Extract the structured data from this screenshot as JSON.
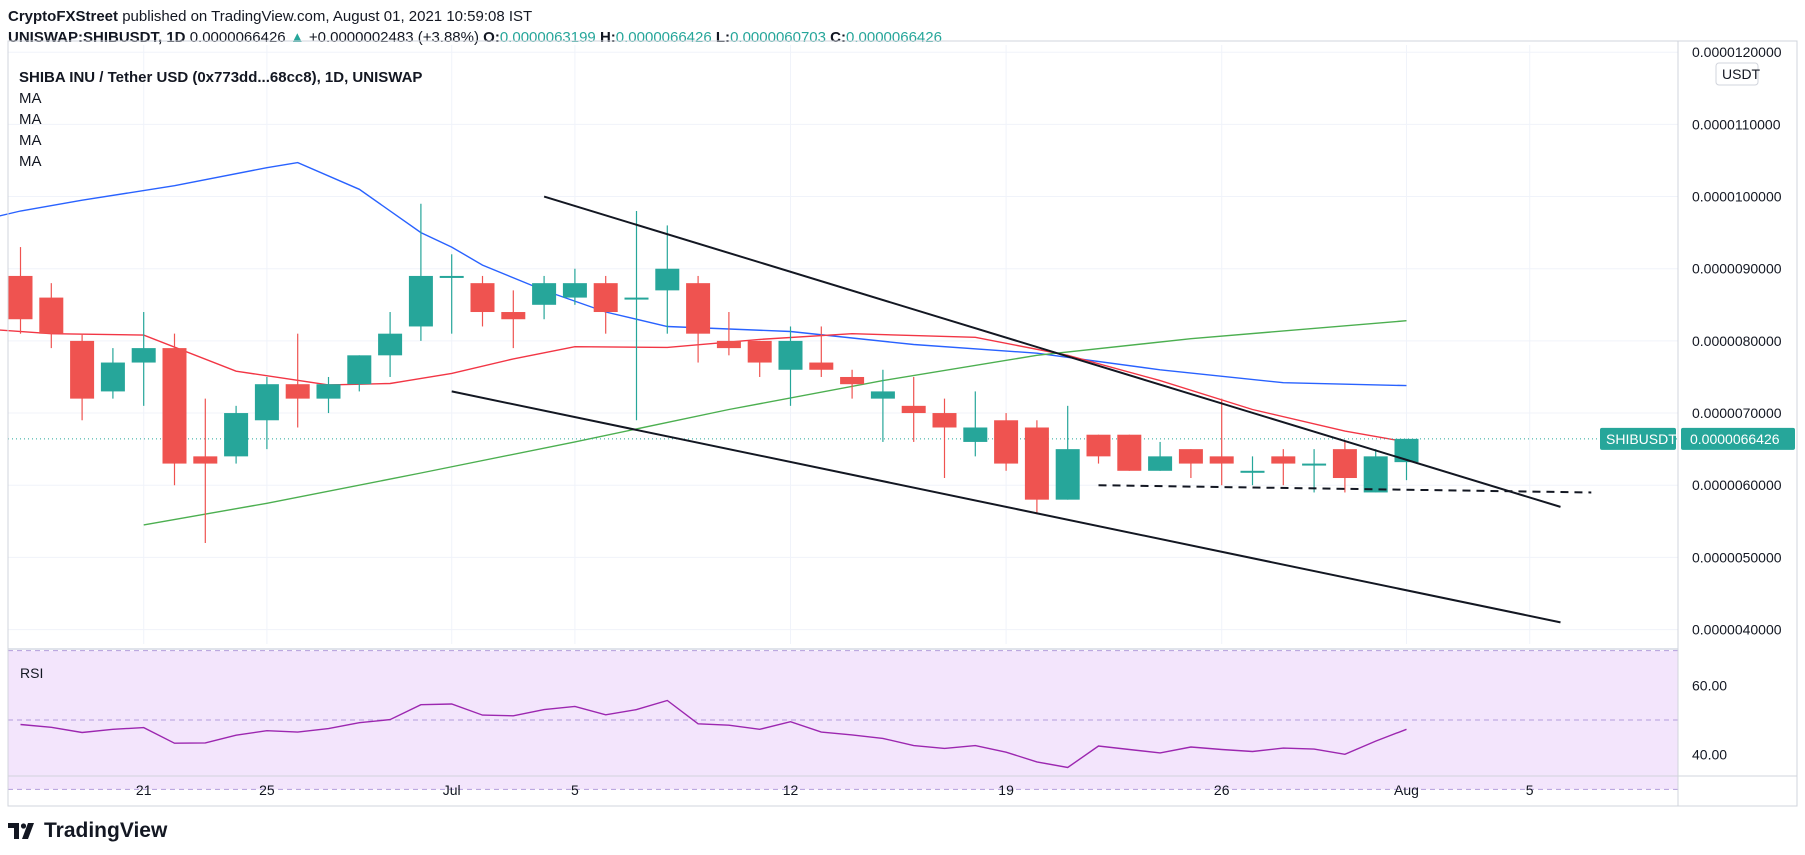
{
  "header": {
    "author": "CryptoFXStreet",
    "published_text": "published on TradingView.com, August 01, 2021 10:59:08 IST",
    "symbol": "UNISWAP:SHIBUSDT, 1D",
    "last": "0.0000066426",
    "change_arrow": "▲",
    "change": "+0.0000002483 (+3.88%)",
    "o_label": "O:",
    "o_value": "0.0000063199",
    "h_label": "H:",
    "h_value": "0.0000066426",
    "l_label": "L:",
    "l_value": "0.0000060703",
    "c_label": "C:",
    "c_value": "0.0000066426"
  },
  "legend": {
    "title": "SHIBA INU / Tether USD (0x773dd...68cc8), 1D, UNISWAP",
    "ma_labels": [
      "MA",
      "MA",
      "MA",
      "MA"
    ]
  },
  "price_axis": {
    "currency": "USDT",
    "ticks": [
      "0.0000120000",
      "0.0000110000",
      "0.0000100000",
      "0.0000090000",
      "0.0000080000",
      "0.0000070000",
      "0.0000060000",
      "0.0000050000",
      "0.0000040000"
    ],
    "last_label": "SHIBUSDT",
    "last_value": "0.0000066426"
  },
  "rsi": {
    "label": "RSI",
    "ticks": [
      "60.00",
      "40.00"
    ]
  },
  "time_axis": {
    "ticks": [
      "21",
      "25",
      "Jul",
      "5",
      "12",
      "19",
      "26",
      "Aug",
      "5"
    ]
  },
  "footer": {
    "brand": "TradingView"
  },
  "colors": {
    "up": "#26a69a",
    "down": "#ef5350",
    "ma_blue": "#2962ff",
    "ma_red": "#f23645",
    "ma_green": "#4caf50",
    "rsi_line": "#9c27b0",
    "rsi_band": "#f3e5fc"
  },
  "chart_data": {
    "type": "candlestick",
    "symbol": "SHIBUSDT",
    "timeframe": "1D",
    "y_unit": "USDT",
    "ylim": [
      3.8e-06,
      1.21e-05
    ],
    "dates": [
      "2021-06-17",
      "2021-06-18",
      "2021-06-19",
      "2021-06-20",
      "2021-06-21",
      "2021-06-22",
      "2021-06-23",
      "2021-06-24",
      "2021-06-25",
      "2021-06-26",
      "2021-06-27",
      "2021-06-28",
      "2021-06-29",
      "2021-06-30",
      "2021-07-01",
      "2021-07-02",
      "2021-07-03",
      "2021-07-04",
      "2021-07-05",
      "2021-07-06",
      "2021-07-07",
      "2021-07-08",
      "2021-07-09",
      "2021-07-10",
      "2021-07-11",
      "2021-07-12",
      "2021-07-13",
      "2021-07-14",
      "2021-07-15",
      "2021-07-16",
      "2021-07-17",
      "2021-07-18",
      "2021-07-19",
      "2021-07-20",
      "2021-07-21",
      "2021-07-22",
      "2021-07-23",
      "2021-07-24",
      "2021-07-25",
      "2021-07-26",
      "2021-07-27",
      "2021-07-28",
      "2021-07-29",
      "2021-07-30",
      "2021-07-31",
      "2021-08-01"
    ],
    "ohlc": [
      [
        8.9e-06,
        9.3e-06,
        8.1e-06,
        8.3e-06
      ],
      [
        8.6e-06,
        8.8e-06,
        7.9e-06,
        8.1e-06
      ],
      [
        8e-06,
        8.1e-06,
        6.9e-06,
        7.2e-06
      ],
      [
        7.3e-06,
        7.9e-06,
        7.2e-06,
        7.7e-06
      ],
      [
        7.7e-06,
        8.4e-06,
        7.1e-06,
        7.9e-06
      ],
      [
        7.9e-06,
        8.1e-06,
        6e-06,
        6.3e-06
      ],
      [
        6.4e-06,
        7.2e-06,
        5.2e-06,
        6.3e-06
      ],
      [
        6.4e-06,
        7.1e-06,
        6.3e-06,
        7e-06
      ],
      [
        6.9e-06,
        7.5e-06,
        6.5e-06,
        7.4e-06
      ],
      [
        7.4e-06,
        8.1e-06,
        6.8e-06,
        7.2e-06
      ],
      [
        7.2e-06,
        7.5e-06,
        7e-06,
        7.4e-06
      ],
      [
        7.4e-06,
        7.8e-06,
        7.3e-06,
        7.8e-06
      ],
      [
        7.8e-06,
        8.4e-06,
        7.5e-06,
        8.1e-06
      ],
      [
        8.2e-06,
        9.9e-06,
        8e-06,
        8.9e-06
      ],
      [
        8.9e-06,
        9.2e-06,
        8.1e-06,
        8.9e-06
      ],
      [
        8.8e-06,
        8.9e-06,
        8.2e-06,
        8.4e-06
      ],
      [
        8.4e-06,
        8.7e-06,
        7.9e-06,
        8.3e-06
      ],
      [
        8.5e-06,
        8.9e-06,
        8.3e-06,
        8.8e-06
      ],
      [
        8.6e-06,
        9e-06,
        8.5e-06,
        8.8e-06
      ],
      [
        8.8e-06,
        8.9e-06,
        8.1e-06,
        8.4e-06
      ],
      [
        8.6e-06,
        9.8e-06,
        6.9e-06,
        8.6e-06
      ],
      [
        8.7e-06,
        9.6e-06,
        8.1e-06,
        9e-06
      ],
      [
        8.8e-06,
        8.9e-06,
        7.7e-06,
        8.1e-06
      ],
      [
        8e-06,
        8.4e-06,
        7.8e-06,
        7.9e-06
      ],
      [
        8e-06,
        8e-06,
        7.5e-06,
        7.7e-06
      ],
      [
        7.6e-06,
        8.2e-06,
        7.1e-06,
        8e-06
      ],
      [
        7.7e-06,
        8.2e-06,
        7.5e-06,
        7.6e-06
      ],
      [
        7.5e-06,
        7.6e-06,
        7.2e-06,
        7.4e-06
      ],
      [
        7.2e-06,
        7.6e-06,
        6.6e-06,
        7.3e-06
      ],
      [
        7.1e-06,
        7.5e-06,
        6.6e-06,
        7e-06
      ],
      [
        7e-06,
        7.2e-06,
        6.1e-06,
        6.8e-06
      ],
      [
        6.6e-06,
        7.3e-06,
        6.4e-06,
        6.8e-06
      ],
      [
        6.9e-06,
        7e-06,
        6.2e-06,
        6.3e-06
      ],
      [
        6.8e-06,
        6.9e-06,
        5.6e-06,
        5.8e-06
      ],
      [
        5.8e-06,
        7.1e-06,
        5.8e-06,
        6.5e-06
      ],
      [
        6.7e-06,
        6.7e-06,
        6.3e-06,
        6.4e-06
      ],
      [
        6.7e-06,
        6.7e-06,
        6.2e-06,
        6.2e-06
      ],
      [
        6.2e-06,
        6.6e-06,
        6.2e-06,
        6.4e-06
      ],
      [
        6.5e-06,
        6.5e-06,
        6.1e-06,
        6.3e-06
      ],
      [
        6.4e-06,
        7.2e-06,
        6e-06,
        6.3e-06
      ],
      [
        6.2e-06,
        6.4e-06,
        6e-06,
        6.2e-06
      ],
      [
        6.4e-06,
        6.5e-06,
        6e-06,
        6.3e-06
      ],
      [
        6.3e-06,
        6.5e-06,
        5.9e-06,
        6.3e-06
      ],
      [
        6.5e-06,
        6.6e-06,
        5.9e-06,
        6.1e-06
      ],
      [
        5.9e-06,
        6.5e-06,
        5.9e-06,
        6.4e-06
      ],
      [
        6.3199e-06,
        6.6426e-06,
        6.0703e-06,
        6.6426e-06
      ]
    ],
    "moving_averages": [
      {
        "color": "blue",
        "points": [
          [
            "2021-06-16",
            9.7e-06
          ],
          [
            "2021-06-17",
            9.8e-06
          ],
          [
            "2021-06-19",
            9.95e-06
          ],
          [
            "2021-06-22",
            1.015e-05
          ],
          [
            "2021-06-25",
            1.04e-05
          ],
          [
            "2021-06-26",
            1.047e-05
          ],
          [
            "2021-06-28",
            1.01e-05
          ],
          [
            "2021-06-30",
            9.5e-06
          ],
          [
            "2021-07-01",
            9.3e-06
          ],
          [
            "2021-07-02",
            9.05e-06
          ],
          [
            "2021-07-04",
            8.7e-06
          ],
          [
            "2021-07-06",
            8.4e-06
          ],
          [
            "2021-07-08",
            8.2e-06
          ],
          [
            "2021-07-12",
            8.13e-06
          ],
          [
            "2021-07-16",
            7.95e-06
          ],
          [
            "2021-07-20",
            7.83e-06
          ],
          [
            "2021-07-24",
            7.6e-06
          ],
          [
            "2021-07-28",
            7.42e-06
          ],
          [
            "2021-08-01",
            7.38e-06
          ]
        ]
      },
      {
        "color": "red",
        "points": [
          [
            "2021-06-16",
            8.16e-06
          ],
          [
            "2021-06-18",
            8.1e-06
          ],
          [
            "2021-06-21",
            8.08e-06
          ],
          [
            "2021-06-24",
            7.58e-06
          ],
          [
            "2021-06-27",
            7.39e-06
          ],
          [
            "2021-06-29",
            7.41e-06
          ],
          [
            "2021-07-01",
            7.55e-06
          ],
          [
            "2021-07-03",
            7.75e-06
          ],
          [
            "2021-07-05",
            7.92e-06
          ],
          [
            "2021-07-08",
            7.91e-06
          ],
          [
            "2021-07-11",
            8.02e-06
          ],
          [
            "2021-07-14",
            8.1e-06
          ],
          [
            "2021-07-18",
            8.05e-06
          ],
          [
            "2021-07-21",
            7.8e-06
          ],
          [
            "2021-07-24",
            7.45e-06
          ],
          [
            "2021-07-27",
            7.05e-06
          ],
          [
            "2021-07-30",
            6.75e-06
          ],
          [
            "2021-08-01",
            6.6e-06
          ]
        ]
      },
      {
        "color": "green",
        "points": [
          [
            "2021-06-21",
            5.45e-06
          ],
          [
            "2021-06-25",
            5.75e-06
          ],
          [
            "2021-06-30",
            6.17e-06
          ],
          [
            "2021-07-05",
            6.6e-06
          ],
          [
            "2021-07-10",
            7.05e-06
          ],
          [
            "2021-07-15",
            7.45e-06
          ],
          [
            "2021-07-20",
            7.8e-06
          ],
          [
            "2021-07-25",
            8.03e-06
          ],
          [
            "2021-08-01",
            8.28e-06
          ]
        ]
      }
    ],
    "rsi": {
      "ylim": [
        35,
        67
      ],
      "bands": [
        30,
        50,
        70
      ],
      "values": [
        48.7,
        47.9,
        46.4,
        47.3,
        47.8,
        43.3,
        43.4,
        45.6,
        46.9,
        46.5,
        47.5,
        49.2,
        50.1,
        54.4,
        54.6,
        51.4,
        51.2,
        53.0,
        53.9,
        51.5,
        53.0,
        55.6,
        48.9,
        48.5,
        47.3,
        49.5,
        46.5,
        45.7,
        44.7,
        42.6,
        41.8,
        42.6,
        40.7,
        37.9,
        36.3,
        42.5,
        41.5,
        40.5,
        42.2,
        41.5,
        40.9,
        41.9,
        41.6,
        40.1,
        43.9,
        47.3
      ]
    },
    "drawings": [
      {
        "type": "trendline",
        "from": [
          "2021-07-04",
          1e-05
        ],
        "to": [
          "2021-08-06",
          5.7e-06
        ]
      },
      {
        "type": "trendline",
        "from": [
          "2021-07-01",
          7.3e-06
        ],
        "to": [
          "2021-08-06",
          4.1e-06
        ]
      },
      {
        "type": "dashed",
        "from": [
          "2021-07-22",
          6e-06
        ],
        "to": [
          "2021-08-07",
          5.9e-06
        ]
      }
    ]
  }
}
